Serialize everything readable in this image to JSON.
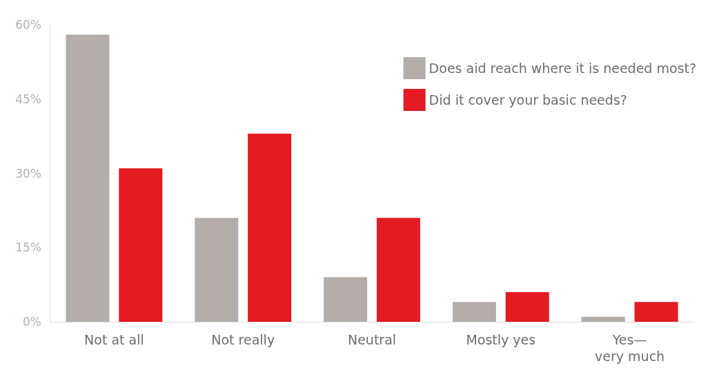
{
  "chart_data": {
    "type": "bar",
    "categories": [
      "Not at all",
      "Not really",
      "Neutral",
      "Mostly yes",
      "Yes—\nvery much"
    ],
    "series": [
      {
        "name": "Does aid reach where it is needed most?",
        "color": "#b5ada9",
        "values": [
          58,
          21,
          9,
          4,
          1
        ]
      },
      {
        "name": "Did it cover your basic needs?",
        "color": "#e41b22",
        "values": [
          31,
          38,
          21,
          6,
          4
        ]
      }
    ],
    "ylim": [
      0,
      60
    ],
    "yticks": [
      {
        "value": 0,
        "label": "0%"
      },
      {
        "value": 15,
        "label": "15%"
      },
      {
        "value": 30,
        "label": "30%"
      },
      {
        "value": 45,
        "label": "45%"
      },
      {
        "value": 60,
        "label": "60%"
      }
    ],
    "grid": false,
    "legend": "top right"
  }
}
